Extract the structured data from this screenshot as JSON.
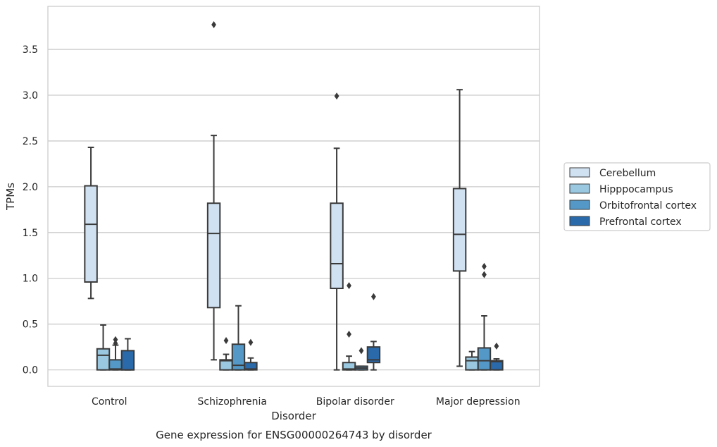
{
  "chart_data": {
    "type": "box",
    "xlabel": "Disorder",
    "ylabel": "TPMs",
    "caption": "Gene expression for ENSG00000264743 by disorder",
    "categories": [
      "Control",
      "Schizophrenia",
      "Bipolar disorder",
      "Major depression"
    ],
    "ylim": [
      -0.18,
      3.97
    ],
    "yticks": [
      "0.0",
      "0.5",
      "1.0",
      "1.5",
      "2.0",
      "2.5",
      "3.0",
      "3.5"
    ],
    "grid": "horizontal",
    "legend_position": "right",
    "series": [
      {
        "name": "Cerebellum",
        "color": "#d0e1f2",
        "boxes": [
          {
            "whislo": 0.78,
            "q1": 0.96,
            "med": 1.59,
            "q3": 2.01,
            "whishi": 2.43,
            "fliers": []
          },
          {
            "whislo": 0.11,
            "q1": 0.68,
            "med": 1.49,
            "q3": 1.82,
            "whishi": 2.56,
            "fliers": [
              3.77
            ]
          },
          {
            "whislo": 0.0,
            "q1": 0.89,
            "med": 1.16,
            "q3": 1.82,
            "whishi": 2.42,
            "fliers": [
              2.99
            ]
          },
          {
            "whislo": 0.04,
            "q1": 1.08,
            "med": 1.48,
            "q3": 1.98,
            "whishi": 3.06,
            "fliers": []
          }
        ]
      },
      {
        "name": "Hipppocampus",
        "color": "#9ac8e0",
        "boxes": [
          {
            "whislo": 0.0,
            "q1": 0.0,
            "med": 0.16,
            "q3": 0.23,
            "whishi": 0.49,
            "fliers": []
          },
          {
            "whislo": 0.0,
            "q1": 0.0,
            "med": 0.1,
            "q3": 0.11,
            "whishi": 0.17,
            "fliers": [
              0.32
            ]
          },
          {
            "whislo": 0.0,
            "q1": 0.0,
            "med": 0.01,
            "q3": 0.08,
            "whishi": 0.15,
            "fliers": [
              0.39,
              0.92
            ]
          },
          {
            "whislo": 0.0,
            "q1": 0.0,
            "med": 0.1,
            "q3": 0.14,
            "whishi": 0.2,
            "fliers": []
          }
        ]
      },
      {
        "name": "Orbitofrontal cortex",
        "color": "#5498c7",
        "boxes": [
          {
            "whislo": 0.0,
            "q1": 0.0,
            "med": 0.01,
            "q3": 0.11,
            "whishi": 0.27,
            "fliers": [
              0.29,
              0.33
            ]
          },
          {
            "whislo": 0.0,
            "q1": 0.0,
            "med": 0.05,
            "q3": 0.28,
            "whishi": 0.7,
            "fliers": []
          },
          {
            "whislo": 0.0,
            "q1": 0.0,
            "med": 0.02,
            "q3": 0.04,
            "whishi": 0.04,
            "fliers": [
              0.21
            ]
          },
          {
            "whislo": 0.0,
            "q1": 0.0,
            "med": 0.1,
            "q3": 0.24,
            "whishi": 0.59,
            "fliers": [
              1.04,
              1.13
            ]
          }
        ]
      },
      {
        "name": "Prefrontal cortex",
        "color": "#2a69aa",
        "boxes": [
          {
            "whislo": 0.0,
            "q1": 0.0,
            "med": 0.0,
            "q3": 0.21,
            "whishi": 0.34,
            "fliers": []
          },
          {
            "whislo": 0.0,
            "q1": 0.0,
            "med": 0.01,
            "q3": 0.08,
            "whishi": 0.13,
            "fliers": [
              0.3
            ]
          },
          {
            "whislo": 0.0,
            "q1": 0.08,
            "med": 0.11,
            "q3": 0.25,
            "whishi": 0.31,
            "fliers": [
              0.8
            ]
          },
          {
            "whislo": 0.0,
            "q1": 0.0,
            "med": 0.09,
            "q3": 0.1,
            "whishi": 0.12,
            "fliers": [
              0.26
            ]
          }
        ]
      }
    ]
  }
}
